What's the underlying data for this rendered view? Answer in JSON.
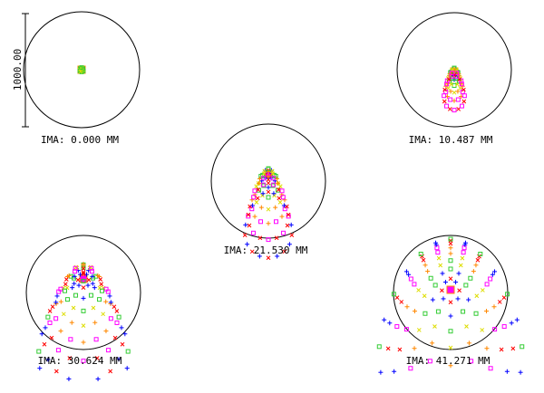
{
  "scale_bar": {
    "label": "1000.00"
  },
  "fields": [
    {
      "label": "IMA: 0.000 MM"
    },
    {
      "label": "IMA: 10.487 MM"
    },
    {
      "label": "IMA: 21.530 MM"
    },
    {
      "label": "IMA: 30.624 MM"
    },
    {
      "label": "IMA: 41.271 MM"
    }
  ]
}
